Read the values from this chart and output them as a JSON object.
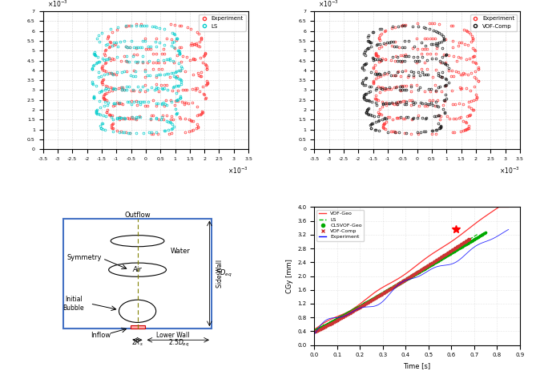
{
  "top_left": {
    "xlim": [
      -0.0035,
      0.0035
    ],
    "ylim": [
      0,
      0.007
    ],
    "legend": [
      "Experiment",
      "LS"
    ],
    "exp_color": "#FF3333",
    "ls_color": "#00CCCC"
  },
  "top_right": {
    "xlim": [
      -0.0035,
      0.0035
    ],
    "ylim": [
      0,
      0.007
    ],
    "legend": [
      "Experiment",
      "VOF-Comp"
    ],
    "exp_color": "#FF3333",
    "vof_color": "#111111"
  },
  "bottom_left": {
    "box_color": "#4472C4",
    "dashed_color": "#808000"
  },
  "bottom_right": {
    "xlabel": "Time [s]",
    "ylabel": "CGy [mm]",
    "xlim": [
      0,
      0.9
    ],
    "ylim": [
      0,
      4
    ]
  }
}
